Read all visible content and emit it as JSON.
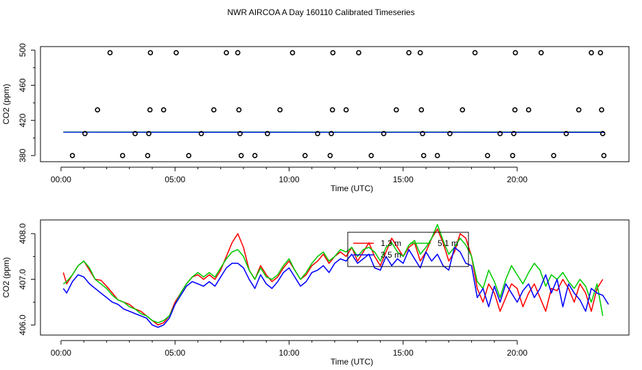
{
  "title": "NWR AIRCOA A  Day 160110  Calibrated Timeseries",
  "chart_data": [
    {
      "type": "scatter",
      "xlabel": "Time (UTC)",
      "ylabel": "CO2 (ppm)",
      "x_ticks": [
        "00:00",
        "05:00",
        "10:00",
        "15:00",
        "20:00"
      ],
      "x_tick_values": [
        0,
        5,
        10,
        15,
        20
      ],
      "y_ticks": [
        "380",
        "420",
        "460",
        "500"
      ],
      "y_tick_values": [
        380,
        420,
        460,
        500
      ],
      "xlim": [
        -0.9,
        24.9
      ],
      "ylim": [
        373,
        504
      ],
      "colors": {
        "trace_a": "#ff0000",
        "trace_b": "#00cc00",
        "trace_c": "#0000ff",
        "points": "#000000"
      },
      "points": [
        [
          0.5,
          380
        ],
        [
          1.05,
          405
        ],
        [
          1.6,
          432
        ],
        [
          2.15,
          497
        ],
        [
          2.7,
          380
        ],
        [
          3.25,
          405
        ],
        [
          3.8,
          380
        ],
        [
          3.85,
          405
        ],
        [
          3.9,
          432
        ],
        [
          3.92,
          497
        ],
        [
          4.5,
          432
        ],
        [
          5.05,
          497
        ],
        [
          5.6,
          380
        ],
        [
          6.15,
          405
        ],
        [
          6.7,
          432
        ],
        [
          7.25,
          497
        ],
        [
          7.75,
          497
        ],
        [
          7.8,
          432
        ],
        [
          7.85,
          405
        ],
        [
          7.9,
          380
        ],
        [
          8.5,
          380
        ],
        [
          9.05,
          405
        ],
        [
          9.6,
          432
        ],
        [
          10.15,
          497
        ],
        [
          10.7,
          380
        ],
        [
          11.25,
          405
        ],
        [
          11.8,
          380
        ],
        [
          11.85,
          405
        ],
        [
          11.9,
          432
        ],
        [
          11.92,
          497
        ],
        [
          12.5,
          432
        ],
        [
          13.05,
          497
        ],
        [
          13.6,
          380
        ],
        [
          14.15,
          405
        ],
        [
          14.7,
          432
        ],
        [
          15.25,
          497
        ],
        [
          15.75,
          497
        ],
        [
          15.8,
          432
        ],
        [
          15.85,
          405
        ],
        [
          15.9,
          380
        ],
        [
          16.5,
          380
        ],
        [
          17.05,
          405
        ],
        [
          17.6,
          432
        ],
        [
          18.15,
          497
        ],
        [
          18.7,
          380
        ],
        [
          19.25,
          405
        ],
        [
          19.8,
          380
        ],
        [
          19.85,
          405
        ],
        [
          19.9,
          432
        ],
        [
          19.92,
          497
        ],
        [
          20.5,
          432
        ],
        [
          21.05,
          497
        ],
        [
          21.6,
          380
        ],
        [
          22.15,
          405
        ],
        [
          22.7,
          432
        ],
        [
          23.25,
          497
        ],
        [
          23.65,
          497
        ],
        [
          23.7,
          432
        ],
        [
          23.75,
          405
        ],
        [
          23.8,
          380
        ]
      ],
      "lines": [
        {
          "color": "#ff0000",
          "x": [
            0.1,
            23.8
          ],
          "y": [
            406.8,
            406.9
          ]
        },
        {
          "color": "#00cc00",
          "x": [
            0.1,
            23.8
          ],
          "y": [
            406.9,
            406.8
          ]
        },
        {
          "color": "#0000ff",
          "x": [
            0.1,
            23.8
          ],
          "y": [
            406.5,
            406.4
          ]
        }
      ]
    },
    {
      "type": "line",
      "xlabel": "Time (UTC)",
      "ylabel": "CO2 (ppm)",
      "x_ticks": [
        "00:00",
        "05:00",
        "10:00",
        "15:00",
        "20:00"
      ],
      "x_tick_values": [
        0,
        5,
        10,
        15,
        20
      ],
      "y_ticks": [
        "406.0",
        "407.0",
        "408.0"
      ],
      "y_tick_values": [
        406.0,
        407.0,
        408.0
      ],
      "xlim": [
        -0.9,
        24.9
      ],
      "ylim": [
        405.78,
        408.3
      ],
      "legend": {
        "position": "top-center",
        "entries": [
          {
            "label": "1.3 m",
            "color": "#ff0000"
          },
          {
            "label": "5.1 m",
            "color": "#00cc00"
          },
          {
            "label": "3.5 m",
            "color": "#0000ff"
          }
        ]
      },
      "series": [
        {
          "name": "1.3 m",
          "color": "#ff0000",
          "x": [
            0.1,
            0.25,
            0.5,
            0.75,
            1.0,
            1.25,
            1.5,
            1.75,
            2.0,
            2.25,
            2.5,
            2.75,
            3.0,
            3.25,
            3.5,
            3.75,
            4.0,
            4.25,
            4.5,
            4.75,
            5.0,
            5.25,
            5.5,
            5.75,
            6.0,
            6.25,
            6.5,
            6.75,
            7.0,
            7.25,
            7.5,
            7.75,
            8.0,
            8.25,
            8.5,
            8.75,
            9.0,
            9.25,
            9.5,
            9.75,
            10.0,
            10.25,
            10.5,
            10.75,
            11.0,
            11.25,
            11.5,
            11.75,
            12.0,
            12.25,
            12.5,
            12.75,
            13.0,
            13.25,
            13.5,
            13.75,
            14.0,
            14.25,
            14.5,
            14.75,
            15.0,
            15.25,
            15.5,
            15.75,
            16.0,
            16.25,
            16.5,
            16.75,
            17.0,
            17.25,
            17.5,
            17.75,
            18.0,
            18.25,
            18.5,
            18.75,
            19.0,
            19.25,
            19.5,
            19.75,
            20.0,
            20.25,
            20.5,
            20.75,
            21.0,
            21.25,
            21.5,
            21.75,
            22.0,
            22.25,
            22.5,
            22.75,
            23.0,
            23.25,
            23.5,
            23.75
          ],
          "y": [
            407.15,
            406.9,
            407.1,
            407.3,
            407.4,
            407.2,
            407.0,
            406.98,
            406.85,
            406.7,
            406.55,
            406.5,
            406.45,
            406.35,
            406.3,
            406.2,
            406.1,
            406.0,
            406.05,
            406.2,
            406.5,
            406.7,
            406.9,
            407.05,
            407.1,
            407.0,
            407.1,
            407.0,
            407.2,
            407.5,
            407.8,
            408.0,
            407.7,
            407.2,
            407.0,
            407.3,
            407.1,
            406.95,
            407.05,
            407.25,
            407.4,
            407.2,
            407.0,
            407.1,
            407.3,
            407.4,
            407.55,
            407.35,
            407.5,
            407.6,
            407.5,
            407.7,
            407.4,
            407.6,
            407.8,
            407.5,
            407.3,
            407.6,
            407.9,
            407.7,
            407.5,
            407.7,
            407.8,
            407.4,
            407.6,
            407.9,
            408.1,
            407.8,
            407.4,
            407.6,
            408.0,
            407.9,
            407.5,
            406.8,
            406.5,
            406.9,
            406.7,
            406.3,
            406.6,
            406.9,
            406.8,
            406.4,
            406.7,
            406.9,
            406.6,
            406.3,
            406.8,
            406.75,
            407.0,
            406.8,
            406.5,
            406.9,
            406.7,
            406.3,
            406.8,
            407.0
          ]
        },
        {
          "name": "5.1 m",
          "color": "#00cc00",
          "x": [
            0.1,
            0.25,
            0.5,
            0.75,
            1.0,
            1.25,
            1.5,
            1.75,
            2.0,
            2.25,
            2.5,
            2.75,
            3.0,
            3.25,
            3.5,
            3.75,
            4.0,
            4.25,
            4.5,
            4.75,
            5.0,
            5.25,
            5.5,
            5.75,
            6.0,
            6.25,
            6.5,
            6.75,
            7.0,
            7.25,
            7.5,
            7.75,
            8.0,
            8.25,
            8.5,
            8.75,
            9.0,
            9.25,
            9.5,
            9.75,
            10.0,
            10.25,
            10.5,
            10.75,
            11.0,
            11.25,
            11.5,
            11.75,
            12.0,
            12.25,
            12.5,
            12.75,
            13.0,
            13.25,
            13.5,
            13.75,
            14.0,
            14.25,
            14.5,
            14.75,
            15.0,
            15.25,
            15.5,
            15.75,
            16.0,
            16.25,
            16.5,
            16.75,
            17.0,
            17.25,
            17.5,
            17.75,
            18.0,
            18.25,
            18.5,
            18.75,
            19.0,
            19.25,
            19.5,
            19.75,
            20.0,
            20.25,
            20.5,
            20.75,
            21.0,
            21.25,
            21.5,
            21.75,
            22.0,
            22.25,
            22.5,
            22.75,
            23.0,
            23.25,
            23.5,
            23.75
          ],
          "y": [
            406.9,
            406.95,
            407.1,
            407.3,
            407.4,
            407.25,
            407.0,
            406.9,
            406.8,
            406.65,
            406.55,
            406.5,
            406.4,
            406.35,
            406.25,
            406.2,
            406.1,
            406.05,
            406.1,
            406.2,
            406.45,
            406.7,
            406.9,
            407.05,
            407.15,
            407.05,
            407.15,
            407.05,
            407.25,
            407.45,
            407.6,
            407.65,
            407.5,
            407.2,
            407.0,
            407.25,
            407.05,
            407.0,
            407.1,
            407.3,
            407.45,
            407.2,
            407.0,
            407.15,
            407.35,
            407.5,
            407.6,
            407.4,
            407.5,
            407.65,
            407.6,
            407.7,
            407.5,
            407.65,
            407.7,
            407.6,
            407.4,
            407.7,
            407.8,
            407.6,
            407.5,
            407.75,
            407.85,
            407.55,
            407.7,
            407.9,
            408.2,
            407.85,
            407.55,
            407.7,
            407.9,
            407.75,
            407.5,
            406.95,
            406.8,
            407.2,
            406.95,
            406.6,
            407.0,
            407.3,
            407.1,
            406.9,
            407.15,
            407.35,
            407.2,
            406.85,
            407.1,
            407.0,
            407.15,
            406.95,
            406.8,
            407.0,
            406.85,
            406.5,
            406.9,
            406.2
          ]
        },
        {
          "name": "3.5 m",
          "color": "#0000ff",
          "x": [
            0.1,
            0.25,
            0.5,
            0.75,
            1.0,
            1.25,
            1.5,
            1.75,
            2.0,
            2.25,
            2.5,
            2.75,
            3.0,
            3.25,
            3.5,
            3.75,
            4.0,
            4.25,
            4.5,
            4.75,
            5.0,
            5.25,
            5.5,
            5.75,
            6.0,
            6.25,
            6.5,
            6.75,
            7.0,
            7.25,
            7.5,
            7.75,
            8.0,
            8.25,
            8.5,
            8.75,
            9.0,
            9.25,
            9.5,
            9.75,
            10.0,
            10.25,
            10.5,
            10.75,
            11.0,
            11.25,
            11.5,
            11.75,
            12.0,
            12.25,
            12.5,
            12.75,
            13.0,
            13.25,
            13.5,
            13.75,
            14.0,
            14.25,
            14.5,
            14.75,
            15.0,
            15.25,
            15.5,
            15.75,
            16.0,
            16.25,
            16.5,
            16.75,
            17.0,
            17.25,
            17.5,
            17.75,
            18.0,
            18.25,
            18.5,
            18.75,
            19.0,
            19.25,
            19.5,
            19.75,
            20.0,
            20.25,
            20.5,
            20.75,
            21.0,
            21.25,
            21.5,
            21.75,
            22.0,
            22.25,
            22.5,
            22.75,
            23.0,
            23.25,
            23.5,
            23.75,
            24.0
          ],
          "y": [
            406.8,
            406.7,
            406.95,
            407.1,
            407.05,
            406.9,
            406.8,
            406.7,
            406.6,
            406.5,
            406.45,
            406.35,
            406.3,
            406.25,
            406.2,
            406.15,
            406.0,
            405.95,
            406.0,
            406.15,
            406.45,
            406.65,
            406.85,
            406.95,
            406.9,
            406.85,
            406.95,
            406.85,
            407.05,
            407.25,
            407.35,
            407.35,
            407.25,
            407.0,
            406.8,
            407.1,
            406.9,
            406.8,
            406.95,
            407.15,
            407.25,
            407.05,
            406.85,
            406.95,
            407.15,
            407.2,
            407.3,
            407.15,
            407.35,
            407.45,
            407.4,
            407.55,
            407.35,
            407.45,
            407.55,
            407.25,
            407.2,
            407.5,
            407.3,
            407.45,
            407.35,
            407.65,
            407.45,
            407.25,
            407.6,
            407.4,
            407.55,
            407.3,
            407.2,
            407.7,
            407.6,
            407.35,
            407.3,
            406.6,
            406.8,
            406.4,
            406.85,
            406.5,
            406.9,
            406.7,
            406.5,
            406.75,
            406.9,
            406.6,
            406.8,
            407.1,
            406.7,
            407.0,
            406.4,
            406.9,
            406.7,
            406.55,
            406.3,
            406.8,
            406.7,
            406.65,
            406.45
          ]
        }
      ]
    }
  ]
}
